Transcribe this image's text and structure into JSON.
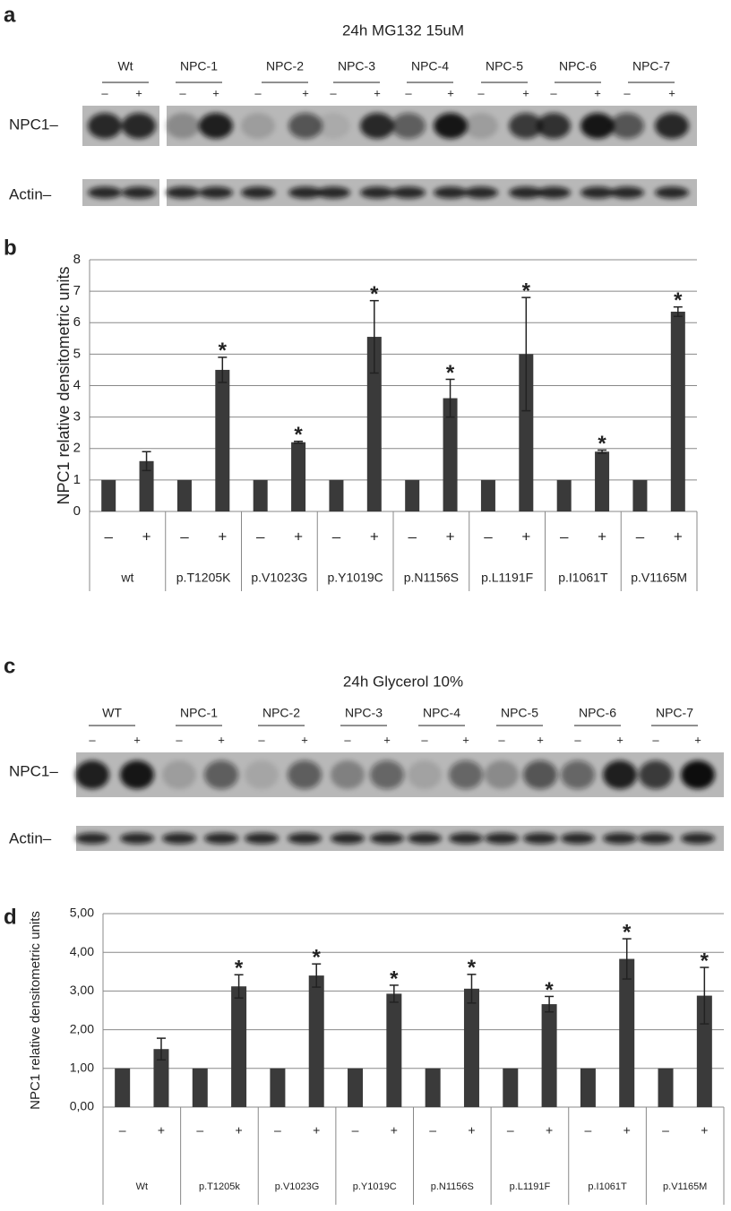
{
  "panel_labels": [
    "a",
    "b",
    "c",
    "d"
  ],
  "blots": [
    {
      "title": "24h MG132 15uM",
      "groups": [
        "Wt",
        "NPC-1",
        "NPC-2",
        "NPC-3",
        "NPC-4",
        "NPC-5",
        "NPC-6",
        "NPC-7"
      ],
      "signs": [
        "–",
        "+"
      ],
      "row_labels": [
        "NPC1–",
        "Actin–"
      ]
    },
    {
      "title": "24h Glycerol 10%",
      "groups": [
        "WT",
        "NPC-1",
        "NPC-2",
        "NPC-3",
        "NPC-4",
        "NPC-5",
        "NPC-6",
        "NPC-7"
      ],
      "signs": [
        "–",
        "+"
      ],
      "row_labels": [
        "NPC1–",
        "Actin–"
      ]
    }
  ],
  "chart_data": [
    {
      "type": "bar",
      "y_label": "NPC1 relative densitometric units",
      "color": "#3a3a3a",
      "grid": true,
      "categories": [
        "–",
        "+",
        "–",
        "+",
        "–",
        "+",
        "–",
        "+",
        "–",
        "+",
        "–",
        "+",
        "–",
        "+",
        "–",
        "+"
      ],
      "groups": [
        "wt",
        "p.T1205K",
        "p.V1023G",
        "p.Y1019C",
        "p.N1156S",
        "p.L1191F",
        "p.I1061T",
        "p.V1165M"
      ],
      "values": [
        1,
        1.6,
        1,
        4.5,
        1,
        2.2,
        1,
        5.55,
        1,
        3.6,
        1,
        5.0,
        1,
        1.9,
        1,
        6.35
      ],
      "errors": [
        null,
        0.3,
        null,
        0.4,
        null,
        0.03,
        null,
        1.15,
        null,
        0.6,
        null,
        1.8,
        null,
        0.05,
        null,
        0.15
      ],
      "significance": [
        null,
        null,
        null,
        "*",
        null,
        "*",
        null,
        "*",
        null,
        "*",
        null,
        "*",
        null,
        "*",
        null,
        "*"
      ],
      "ylim": [
        0,
        8
      ],
      "yticks": [
        0,
        1,
        2,
        3,
        4,
        5,
        6,
        7,
        8
      ]
    },
    {
      "type": "bar",
      "y_label": "NPC1 relative densitometric units",
      "color": "#3a3a3a",
      "grid": true,
      "categories": [
        "–",
        "+",
        "–",
        "+",
        "–",
        "+",
        "–",
        "+",
        "–",
        "+",
        "–",
        "+",
        "–",
        "+",
        "–",
        "+"
      ],
      "groups": [
        "Wt",
        "p.T1205k",
        "p.V1023G",
        "p.Y1019C",
        "p.N1156S",
        "p.L1191F",
        "p.I1061T",
        "p.V1165M"
      ],
      "values": [
        1,
        1.5,
        1,
        3.12,
        1,
        3.4,
        1,
        2.93,
        1,
        3.06,
        1,
        2.66,
        1,
        3.83,
        1,
        2.88
      ],
      "errors": [
        null,
        0.28,
        null,
        0.3,
        null,
        0.3,
        null,
        0.22,
        null,
        0.37,
        null,
        0.2,
        null,
        0.52,
        null,
        0.73
      ],
      "significance": [
        null,
        null,
        null,
        "*",
        null,
        "*",
        null,
        "*",
        null,
        "*",
        null,
        "*",
        null,
        "*",
        null,
        "*"
      ],
      "ylim": [
        0,
        5
      ],
      "yticks": [
        {
          "value": 0,
          "label": "0,00"
        },
        {
          "value": 1,
          "label": "1,00"
        },
        {
          "value": 2,
          "label": "2,00"
        },
        {
          "value": 3,
          "label": "3,00"
        },
        {
          "value": 4,
          "label": "4,00"
        },
        {
          "value": 5,
          "label": "5,00"
        }
      ]
    }
  ]
}
